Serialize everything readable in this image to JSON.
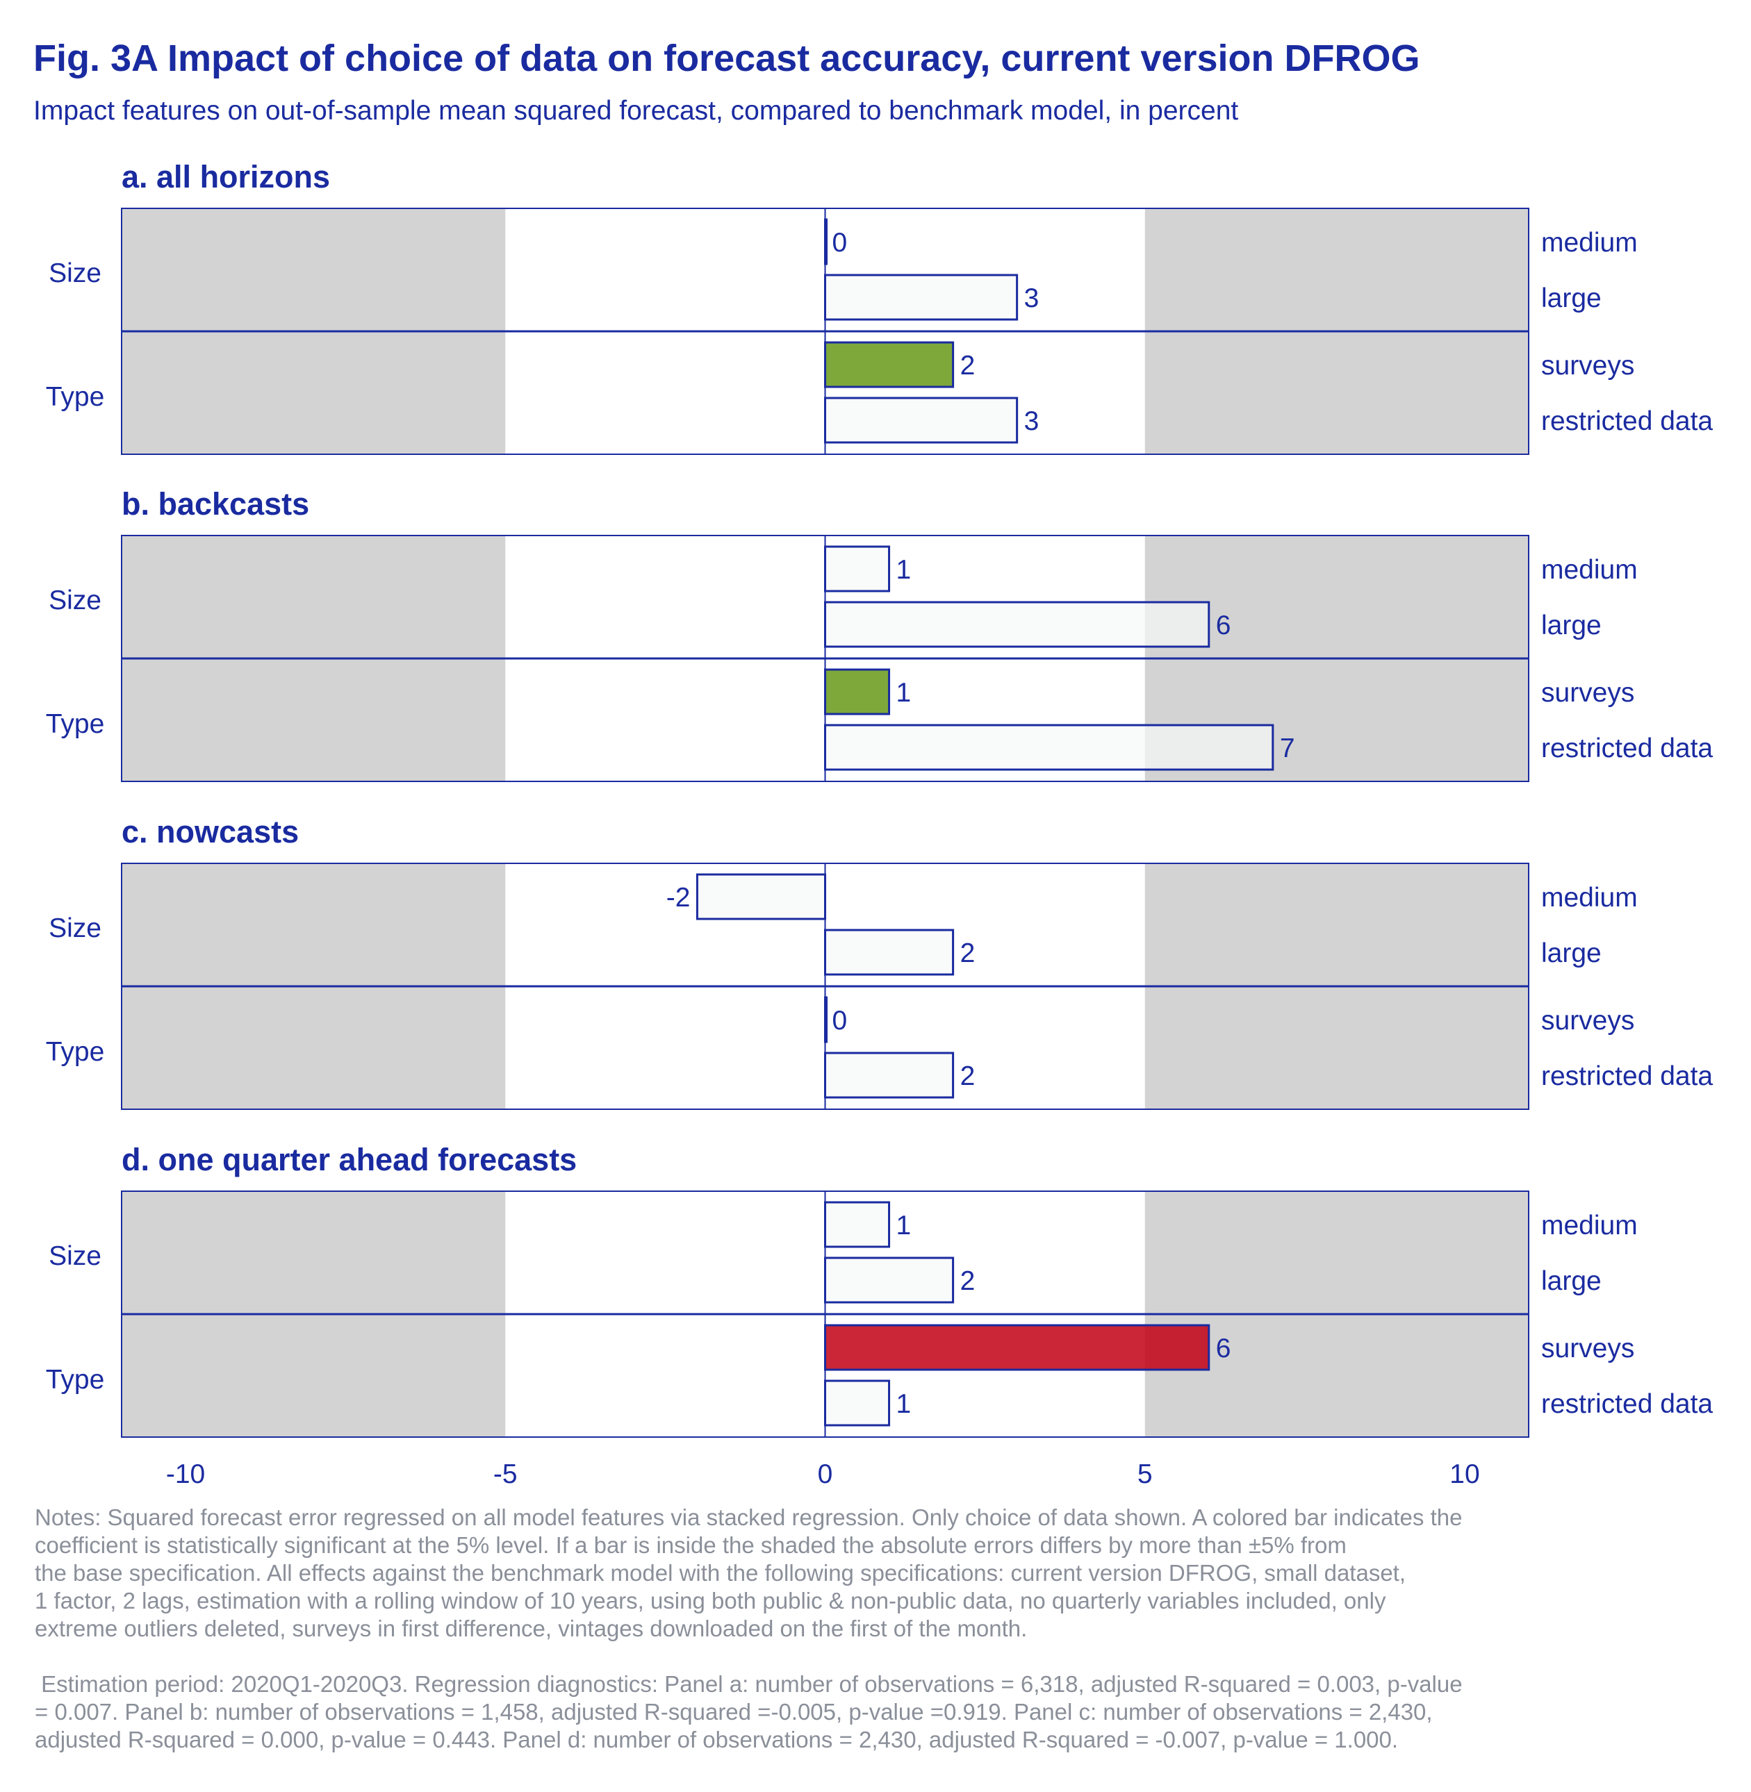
{
  "title": "Fig. 3A Impact of choice of data on forecast accuracy, current version DFROG",
  "subtitle": "Impact features on out-of-sample mean squared forecast, compared to benchmark model, in percent",
  "colors": {
    "text": "#1a2ba0",
    "shade": "#d3d3d3",
    "bar_fill": "#f6f8f8",
    "significant_green": "#7ea83a",
    "significant_red": "#c10014",
    "notes": "#8a8f99"
  },
  "chart_data": [
    {
      "type": "bar",
      "orientation": "horizontal",
      "title": "a. all horizons",
      "groups": [
        "Size",
        "Type"
      ],
      "categories": [
        "medium",
        "large",
        "surveys",
        "restricted data"
      ],
      "category_groups": [
        "Size",
        "Size",
        "Type",
        "Type"
      ],
      "values": [
        0,
        3,
        2,
        3
      ],
      "labels": [
        "0",
        "3",
        "2",
        "3"
      ],
      "significant": [
        "none",
        "none",
        "green",
        "none"
      ],
      "xlim": [
        -11,
        11
      ],
      "xticks": [
        -10,
        -5,
        0,
        5,
        10
      ],
      "shaded_region": "|x| > 5"
    },
    {
      "type": "bar",
      "orientation": "horizontal",
      "title": "b. backcasts",
      "groups": [
        "Size",
        "Type"
      ],
      "categories": [
        "medium",
        "large",
        "surveys",
        "restricted data"
      ],
      "category_groups": [
        "Size",
        "Size",
        "Type",
        "Type"
      ],
      "values": [
        1,
        6,
        1,
        7
      ],
      "labels": [
        "1",
        "6",
        "1",
        "7"
      ],
      "significant": [
        "none",
        "none",
        "green",
        "none"
      ],
      "xlim": [
        -11,
        11
      ],
      "xticks": [
        -10,
        -5,
        0,
        5,
        10
      ],
      "shaded_region": "|x| > 5"
    },
    {
      "type": "bar",
      "orientation": "horizontal",
      "title": "c. nowcasts",
      "groups": [
        "Size",
        "Type"
      ],
      "categories": [
        "medium",
        "large",
        "surveys",
        "restricted data"
      ],
      "category_groups": [
        "Size",
        "Size",
        "Type",
        "Type"
      ],
      "values": [
        -2,
        2,
        0,
        2
      ],
      "labels": [
        "-2",
        "2",
        "0",
        "2"
      ],
      "significant": [
        "none",
        "none",
        "none",
        "none"
      ],
      "xlim": [
        -11,
        11
      ],
      "xticks": [
        -10,
        -5,
        0,
        5,
        10
      ],
      "shaded_region": "|x| > 5"
    },
    {
      "type": "bar",
      "orientation": "horizontal",
      "title": "d. one quarter ahead forecasts",
      "groups": [
        "Size",
        "Type"
      ],
      "categories": [
        "medium",
        "large",
        "surveys",
        "restricted data"
      ],
      "category_groups": [
        "Size",
        "Size",
        "Type",
        "Type"
      ],
      "values": [
        1,
        2,
        6,
        1
      ],
      "labels": [
        "1",
        "2",
        "6",
        "1"
      ],
      "significant": [
        "none",
        "none",
        "red",
        "none"
      ],
      "xlim": [
        -11,
        11
      ],
      "xticks": [
        -10,
        -5,
        0,
        5,
        10
      ],
      "shaded_region": "|x| > 5"
    }
  ],
  "notes": {
    "p1": "Notes: Squared forecast error regressed on all model features via stacked regression. Only choice of data shown. A colored bar indicates the\ncoefficient is statistically significant at the 5% level. If a bar is inside the shaded the absolute errors differs by more than ±5% from\nthe base specification. All effects against the benchmark model with the following specifications: current version DFROG, small dataset,\n1 factor, 2 lags, estimation with a rolling window of 10 years, using both public & non-public data, no quarterly variables included, only\nextreme outliers deleted, surveys in first difference, vintages downloaded on the first of the month.",
    "p2": " Estimation period: 2020Q1-2020Q3. Regression diagnostics: Panel a: number of observations = 6,318, adjusted R-squared = 0.003, p-value\n= 0.007. Panel b: number of observations = 1,458, adjusted R-squared =-0.005, p-value =0.919. Panel c: number of observations = 2,430,\nadjusted R-squared = 0.000, p-value = 0.443. Panel d: number of observations = 2,430, adjusted R-squared = -0.007, p-value = 1.000."
  }
}
